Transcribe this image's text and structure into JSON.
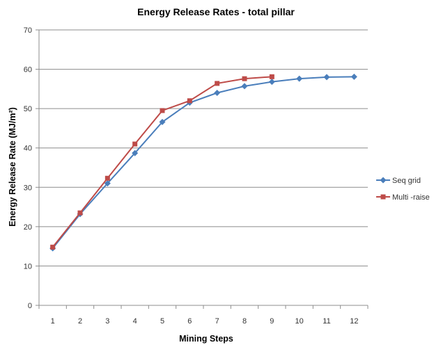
{
  "chart_data": {
    "type": "line",
    "title": "Energy Release Rates - total pillar",
    "xlabel": "Mining Steps",
    "ylabel": "Energy Release Rate (MJ/m²)",
    "categories": [
      "1",
      "2",
      "3",
      "4",
      "5",
      "6",
      "7",
      "8",
      "9",
      "10",
      "11",
      "12"
    ],
    "ylim": [
      0,
      70
    ],
    "yticks": [
      0,
      10,
      20,
      30,
      40,
      50,
      60,
      70
    ],
    "grid": "horizontal",
    "legend_position": "right",
    "series": [
      {
        "name": "Seq grid",
        "color": "#4a7ebb",
        "marker": "diamond",
        "values": [
          14.5,
          23.2,
          31.0,
          38.7,
          46.6,
          51.5,
          54.0,
          55.7,
          56.8,
          57.6,
          58.0,
          58.1
        ]
      },
      {
        "name": "Multi -raise",
        "color": "#be4b48",
        "marker": "square",
        "values": [
          14.8,
          23.5,
          32.3,
          41.0,
          49.5,
          52.0,
          56.4,
          57.6,
          58.1,
          null,
          null,
          null
        ]
      }
    ]
  }
}
